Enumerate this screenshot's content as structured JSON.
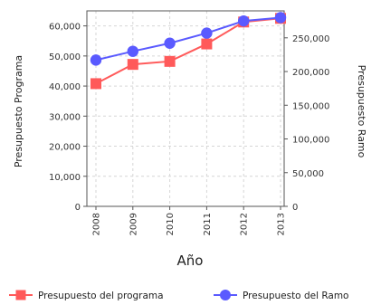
{
  "chart_data": {
    "type": "line",
    "title": "",
    "xlabel": "Año",
    "x": [
      "2008",
      "2009",
      "2010",
      "2011",
      "2012",
      "2013"
    ],
    "ylabel_left": "Presupuesto Programa",
    "ylabel_right": "Presupuesto Ramo",
    "ylim_left": [
      0,
      65000
    ],
    "yticks_left": [
      "0",
      "10,000",
      "20,000",
      "30,000",
      "40,000",
      "50,000",
      "60,000"
    ],
    "ylim_right": [
      0,
      290000
    ],
    "yticks_right": [
      "0",
      "50,000",
      "100,000",
      "150,000",
      "200,000",
      "250,000"
    ],
    "grid": true,
    "legend": "bottom",
    "series": [
      {
        "name": "Presupuesto del programa",
        "axis": "left",
        "marker": "square",
        "color": "#ff5a5a",
        "values": [
          40800,
          47200,
          48200,
          54000,
          61300,
          62500
        ]
      },
      {
        "name": "Presupuesto del Ramo",
        "axis": "right",
        "marker": "circle",
        "color": "#5a5aff",
        "values": [
          217000,
          230000,
          242000,
          257000,
          275000,
          280000
        ]
      }
    ]
  }
}
